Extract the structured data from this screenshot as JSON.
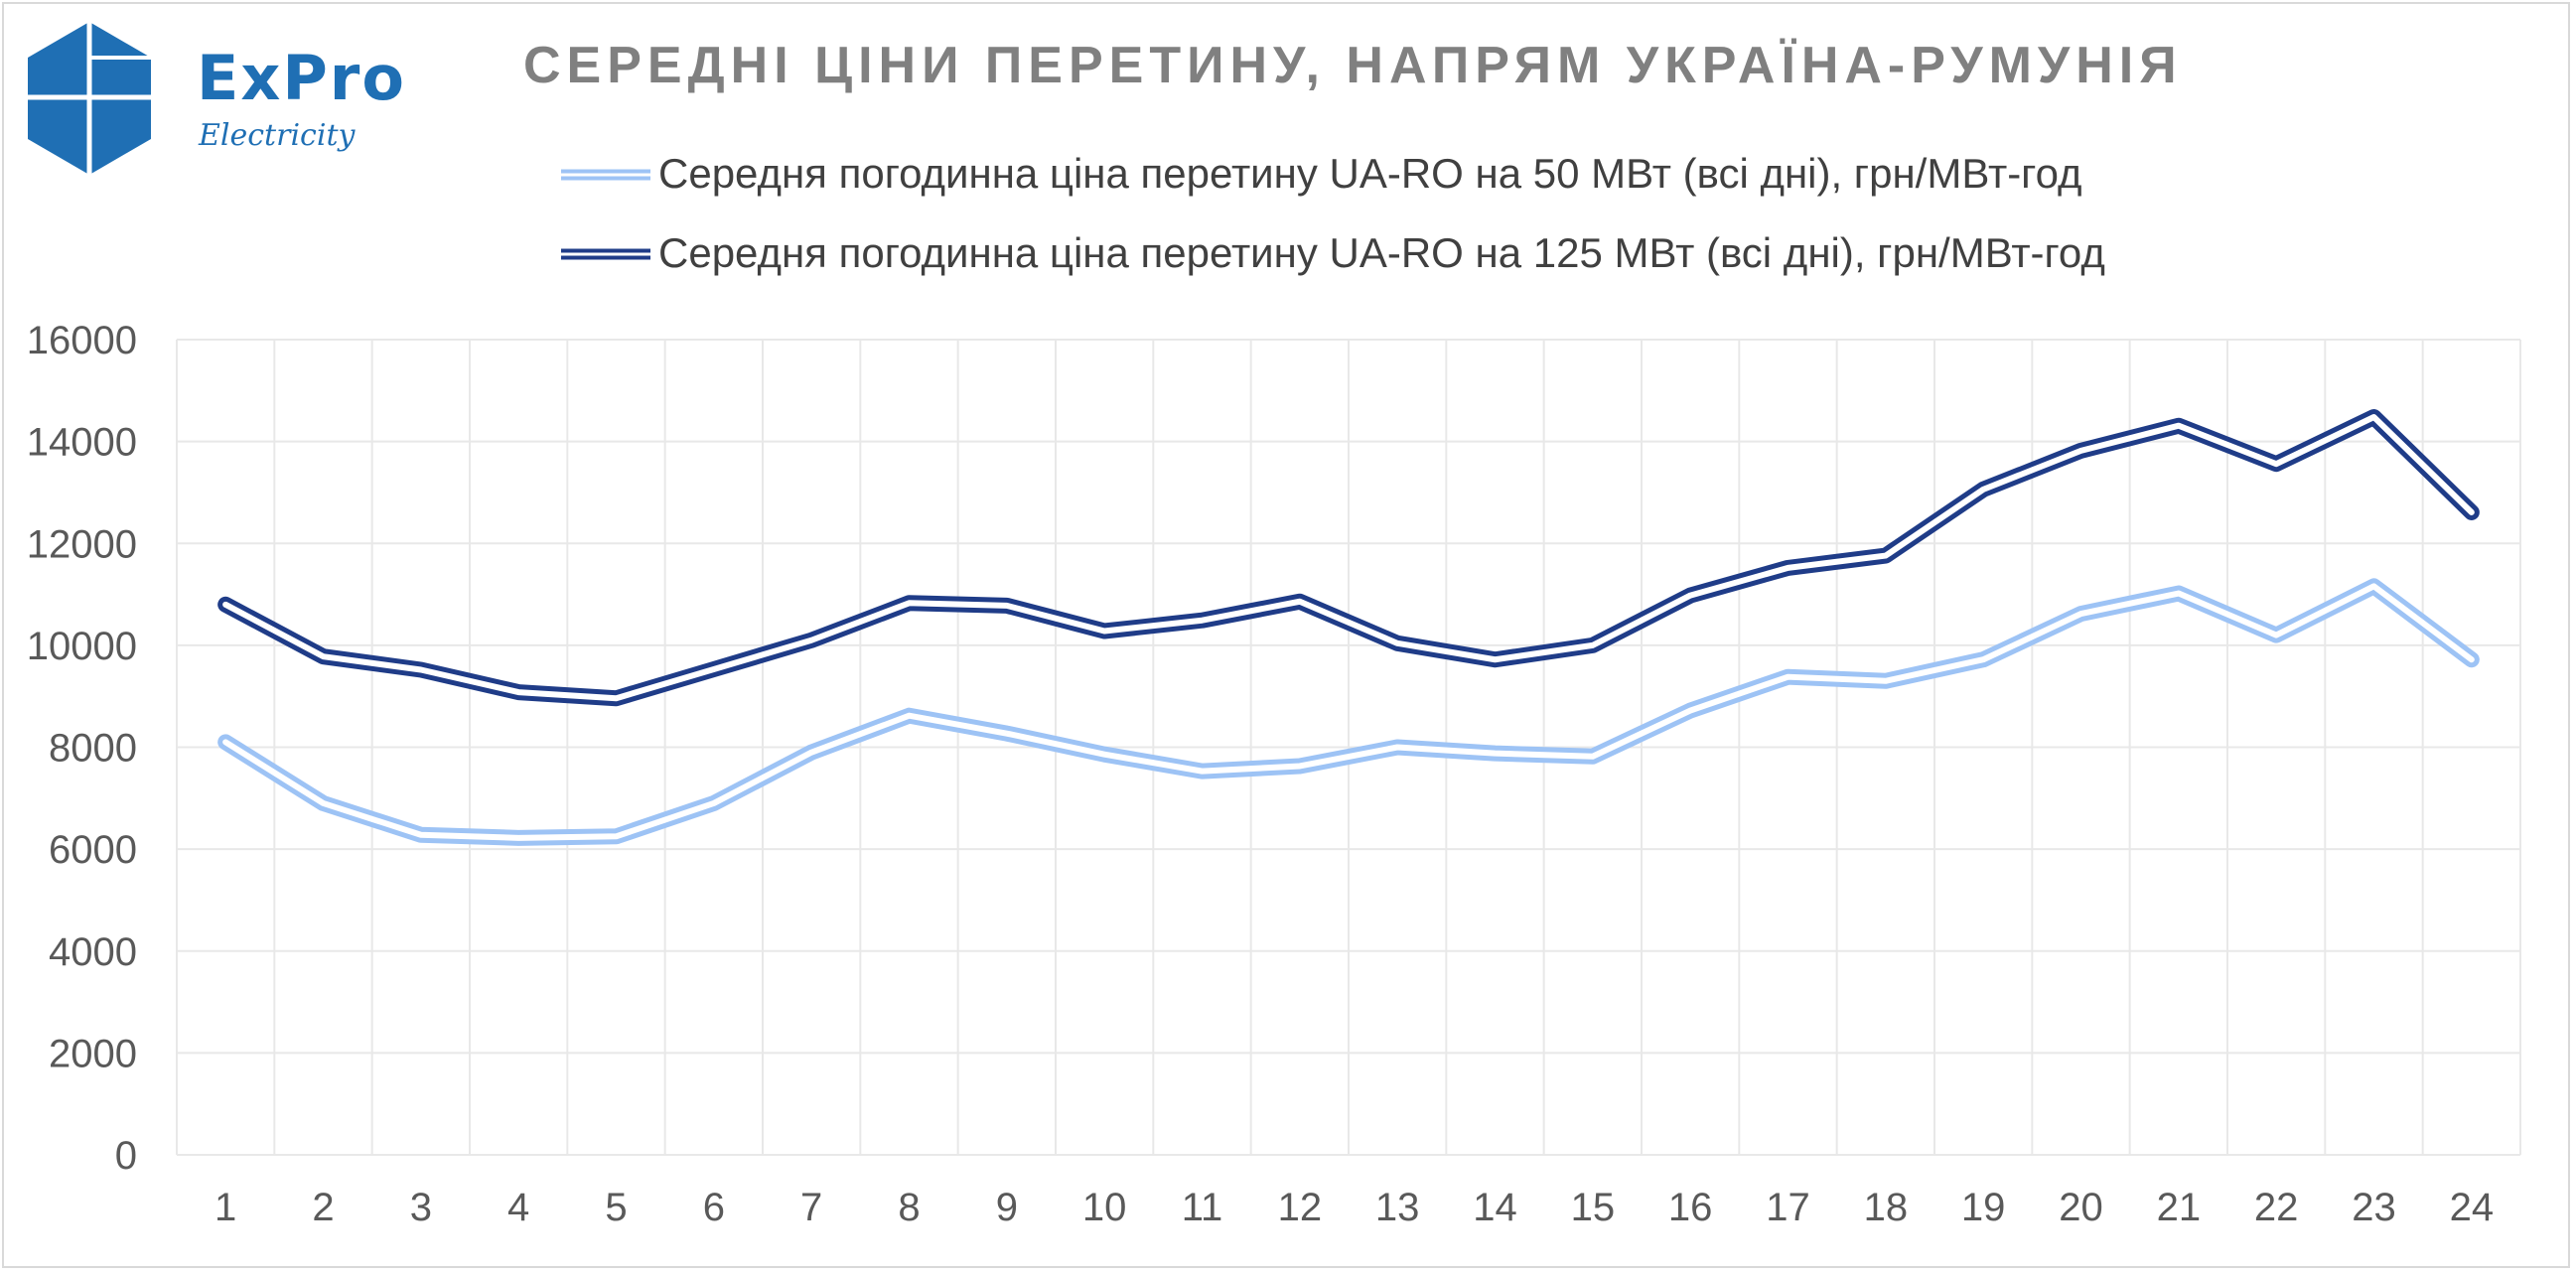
{
  "logo": {
    "brand": "ExPro",
    "sub": "Electricity"
  },
  "colors": {
    "series_50": "#9dc3f5",
    "series_125": "#1f3c88",
    "gridline": "#e8e8e8",
    "title": "#808080",
    "logo": "#1f6fb4"
  },
  "chart_data": {
    "type": "line",
    "title": "СЕРЕДНІ ЦІНИ ПЕРЕТИНУ, НАПРЯМ УКРАЇНА-РУМУНІЯ",
    "xlabel": "",
    "ylabel": "",
    "ylim": [
      0,
      16000
    ],
    "yticks": [
      "0",
      "2000",
      "4000",
      "6000",
      "8000",
      "10000",
      "12000",
      "14000",
      "16000"
    ],
    "grid": true,
    "legend_position": "top",
    "categories": [
      "1",
      "2",
      "3",
      "4",
      "5",
      "6",
      "7",
      "8",
      "9",
      "10",
      "11",
      "12",
      "13",
      "14",
      "15",
      "16",
      "17",
      "18",
      "19",
      "20",
      "21",
      "22",
      "23",
      "24"
    ],
    "series": [
      {
        "name": "Середня погодинна ціна перетину UA-RO на 50 МВт (всі дні), грн/МВт-год",
        "values": [
          8100,
          6900,
          6280,
          6220,
          6250,
          6900,
          7900,
          8620,
          8270,
          7860,
          7530,
          7630,
          8000,
          7880,
          7820,
          8720,
          9380,
          9300,
          9720,
          10620,
          11020,
          10200,
          11160,
          9720
        ]
      },
      {
        "name": "Середня погодинна ціна перетину UA-RO на 125 МВт (всі дні), грн/МВт-год",
        "values": [
          10800,
          9780,
          9520,
          9080,
          8960,
          9530,
          10100,
          10830,
          10780,
          10280,
          10490,
          10860,
          10040,
          9720,
          10000,
          10980,
          11520,
          11760,
          13060,
          13820,
          14310,
          13560,
          14480,
          12610
        ]
      }
    ]
  }
}
